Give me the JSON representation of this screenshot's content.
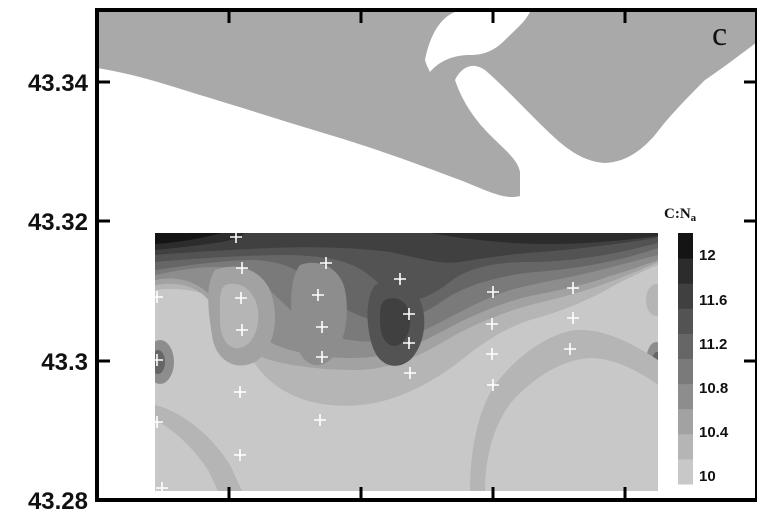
{
  "map": {
    "panel_label": "c",
    "y_axis": {
      "tick_labels": [
        "43.34",
        "43.32",
        "43.3",
        "43.28"
      ],
      "range": [
        43.28,
        43.35
      ]
    },
    "land_color": "#a9a9a9",
    "water_color": "#ffffff",
    "colorbar": {
      "title_main": "C:N",
      "title_sub": "a",
      "tick_labels": [
        "12",
        "11.6",
        "11.2",
        "10.8",
        "10.4",
        "10"
      ],
      "range": [
        10,
        12.4
      ],
      "level_colors": [
        "#c8c8c8",
        "#b5b5b5",
        "#a2a2a2",
        "#8d8d8d",
        "#7a7a7a",
        "#666666",
        "#535353",
        "#404040",
        "#2c2c2c",
        "#141414"
      ]
    },
    "sample_station_marker": "plus-sign",
    "sample_station_count": 26
  }
}
